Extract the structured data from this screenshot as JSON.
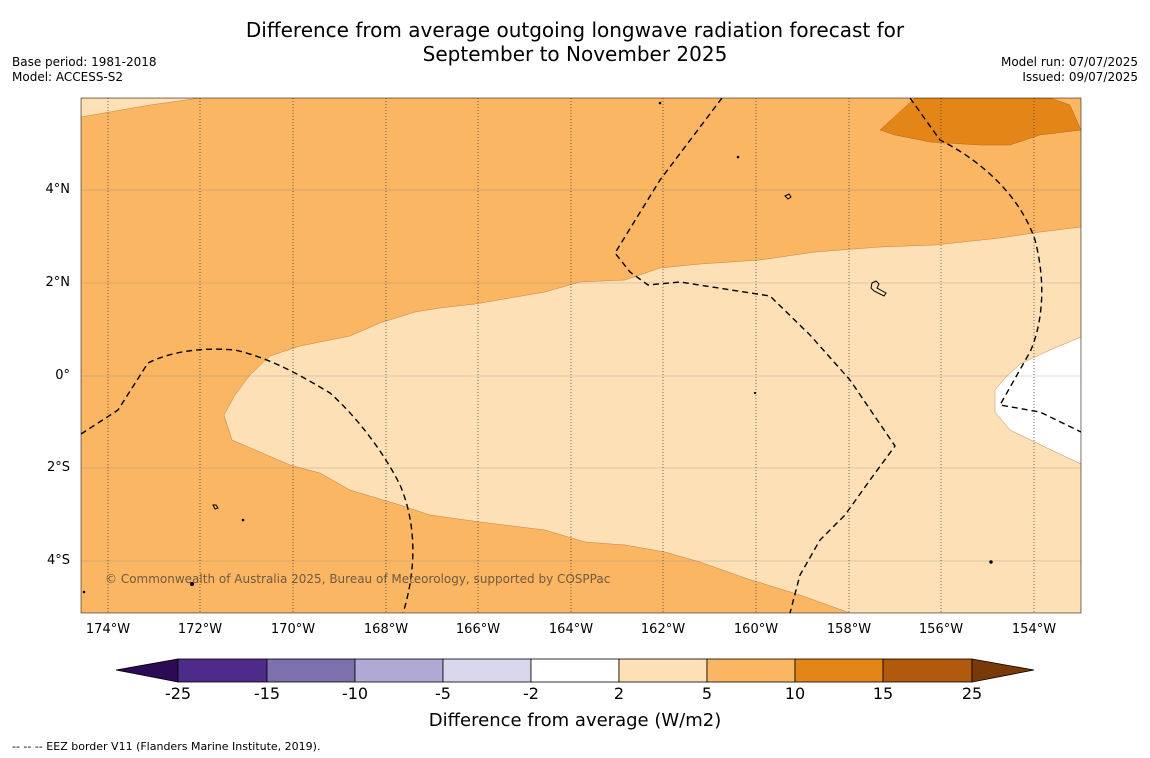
{
  "title_line1": "Difference from average outgoing longwave radiation forecast for",
  "title_line2": "September to November 2025",
  "meta_left": {
    "base_period": "Base period: 1981-2018",
    "model": "Model: ACCESS-S2"
  },
  "meta_right": {
    "model_run": "Model run: 07/07/2025",
    "issued": "Issued: 09/07/2025"
  },
  "lat_labels": [
    "4°N",
    "2°N",
    "0°",
    "2°S",
    "4°S"
  ],
  "lon_labels": [
    "174°W",
    "172°W",
    "170°W",
    "168°W",
    "166°W",
    "164°W",
    "162°W",
    "160°W",
    "158°W",
    "156°W",
    "154°W"
  ],
  "copyright": "© Commonwealth of Australia 2025, Bureau of Meteorology, supported by COSPPac",
  "colorbar": {
    "title": "Difference from average (W/m2)",
    "ticks": [
      "-25",
      "-15",
      "-10",
      "-5",
      "-2",
      "2",
      "5",
      "10",
      "15",
      "25"
    ],
    "colors": [
      "#2d0a55",
      "#4e2a8a",
      "#7e70ad",
      "#b0a9d4",
      "#d9d7ec",
      "#ffffff",
      "#fde0b6",
      "#fab663",
      "#e38617",
      "#b15a0e",
      "#7a3a08"
    ]
  },
  "footer": "--  --  -- EEZ border V11 (Flanders Marine Institute, 2019)."
}
